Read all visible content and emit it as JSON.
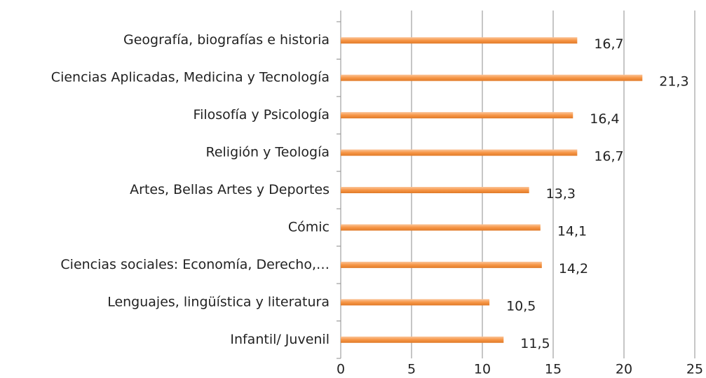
{
  "chart_data": {
    "type": "bar",
    "orientation": "horizontal",
    "categories": [
      "Geografía, biografías e historia",
      "Ciencias Aplicadas, Medicina y Tecnología",
      "Filosofía y Psicología",
      "Religión y Teología",
      "Artes, Bellas Artes y Deportes",
      "Cómic",
      "Ciencias sociales: Economía, Derecho,…",
      "Lenguajes, lingüística y literatura",
      "Infantil/ Juvenil"
    ],
    "values": [
      16.7,
      21.3,
      16.4,
      16.7,
      13.3,
      14.1,
      14.2,
      10.5,
      11.5
    ],
    "value_labels": [
      "16,7",
      "21,3",
      "16,4",
      "16,7",
      "13,3",
      "14,1",
      "14,2",
      "10,5",
      "11,5"
    ],
    "color": "#f79646",
    "xlim": [
      0,
      25
    ],
    "xticks": [
      0,
      5,
      10,
      15,
      20,
      25
    ],
    "grid": true
  }
}
